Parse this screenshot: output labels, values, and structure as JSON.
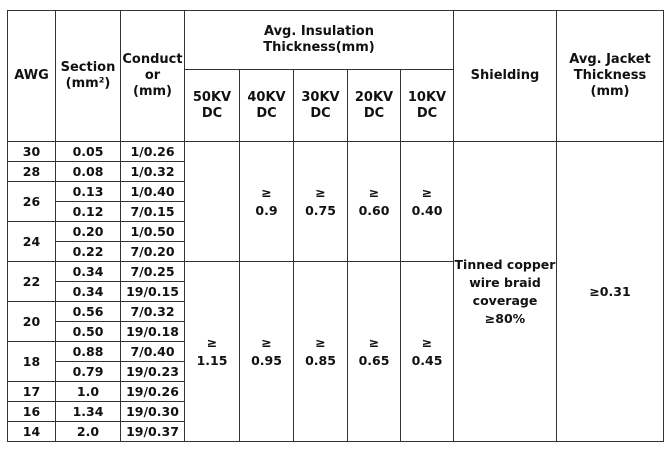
{
  "headers": {
    "awg": "AWG",
    "section": "Section\n(mm²)",
    "conductor": "Conduct\nor\n(mm)",
    "insulation_group": "Avg. Insulation\nThickness(mm)",
    "shielding": "Shielding",
    "jacket": "Avg. Jacket\nThickness\n(mm)",
    "voltages": [
      "50KV\nDC",
      "40KV\nDC",
      "30KV\nDC",
      "20KV\nDC",
      "10KV\nDC"
    ]
  },
  "rows": [
    {
      "awg": "30",
      "section": "0.05",
      "conductor": "1/0.26"
    },
    {
      "awg": "28",
      "section": "0.08",
      "conductor": "1/0.32"
    },
    {
      "awg": "26",
      "section": "0.13",
      "conductor": "1/0.40"
    },
    {
      "awg": "",
      "section": "0.12",
      "conductor": "7/0.15"
    },
    {
      "awg": "24",
      "section": "0.20",
      "conductor": "1/0.50"
    },
    {
      "awg": "",
      "section": "0.22",
      "conductor": "7/0.20"
    },
    {
      "awg": "22",
      "section": "0.34",
      "conductor": "7/0.25"
    },
    {
      "awg": "",
      "section": "0.34",
      "conductor": "19/0.15"
    },
    {
      "awg": "20",
      "section": "0.56",
      "conductor": "7/0.32"
    },
    {
      "awg": "",
      "section": "0.50",
      "conductor": "19/0.18"
    },
    {
      "awg": "18",
      "section": "0.88",
      "conductor": "7/0.40"
    },
    {
      "awg": "",
      "section": "0.79",
      "conductor": "19/0.23"
    },
    {
      "awg": "17",
      "section": "1.0",
      "conductor": "19/0.26"
    },
    {
      "awg": "16",
      "section": "1.34",
      "conductor": "19/0.30"
    },
    {
      "awg": "14",
      "section": "2.0",
      "conductor": "19/0.37"
    }
  ],
  "insulation_top": {
    "v50": "",
    "v40": "≥\n0.9",
    "v30": "≥\n0.75",
    "v20": "≥\n0.60",
    "v10": "≥\n0.40"
  },
  "insulation_bottom": {
    "v50": "≥\n1.15",
    "v40": "≥\n0.95",
    "v30": "≥\n0.85",
    "v20": "≥\n0.65",
    "v10": "≥\n0.45"
  },
  "shielding_value": "Tinned copper\nwire braid\ncoverage\n≥80%",
  "jacket_value": "≥0.31"
}
